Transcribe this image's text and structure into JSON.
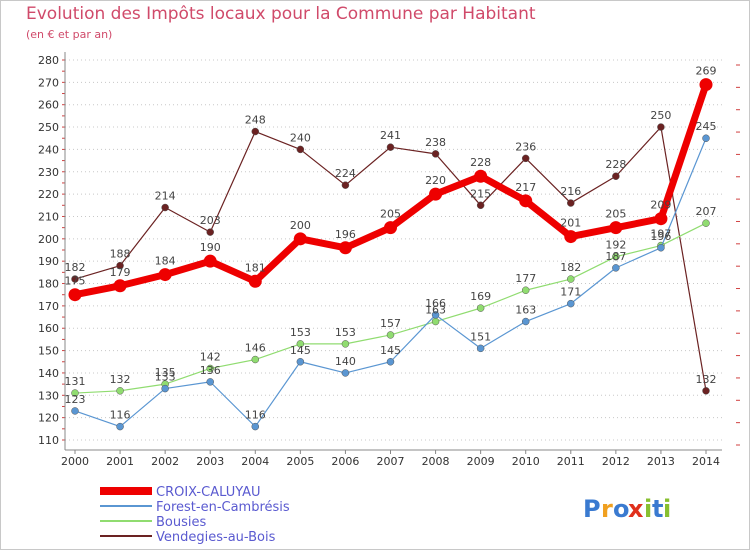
{
  "chart_data": {
    "type": "line",
    "title": "Evolution des Impôts locaux pour la Commune par Habitant",
    "subtitle": "(en € et par an)",
    "x": [
      2000,
      2001,
      2002,
      2003,
      2004,
      2005,
      2006,
      2007,
      2008,
      2009,
      2010,
      2011,
      2012,
      2013,
      2014
    ],
    "ylim": [
      110,
      280
    ],
    "yticks": [
      110,
      120,
      130,
      140,
      150,
      160,
      170,
      180,
      190,
      200,
      210,
      220,
      230,
      240,
      250,
      260,
      270,
      280
    ],
    "grid": "y dotted",
    "legend_position": "bottom-left",
    "series": [
      {
        "name": "Vendegies-au-Bois",
        "color": "#6b2222",
        "values": [
          182,
          188,
          214,
          203,
          248,
          240,
          224,
          241,
          238,
          215,
          236,
          216,
          228,
          250,
          132
        ]
      },
      {
        "name": "Bousies",
        "color": "#90dc70",
        "values": [
          131,
          132,
          135,
          142,
          146,
          153,
          153,
          157,
          163,
          169,
          177,
          182,
          192,
          197,
          207
        ]
      },
      {
        "name": "Forest-en-Cambrésis",
        "color": "#5a96d2",
        "values": [
          123,
          116,
          133,
          136,
          116,
          145,
          140,
          145,
          166,
          151,
          163,
          171,
          187,
          196,
          245
        ]
      },
      {
        "name": "CROIX-CALUYAU",
        "color": "#ee0000",
        "values": [
          175,
          179,
          184,
          190,
          181,
          200,
          196,
          205,
          220,
          228,
          217,
          201,
          205,
          209,
          269
        ]
      }
    ],
    "legend": [
      "CROIX-CALUYAU",
      "Forest-en-Cambrésis",
      "Bousies",
      "Vendegies-au-Bois"
    ]
  },
  "brand": {
    "letters": [
      "P",
      "r",
      "o",
      "x",
      "i",
      "t",
      "i"
    ],
    "colors": [
      "#3a7ad0",
      "#f0a020",
      "#3a7ad0",
      "#e0301c",
      "#88c030",
      "#3a7ad0",
      "#88c030"
    ]
  }
}
